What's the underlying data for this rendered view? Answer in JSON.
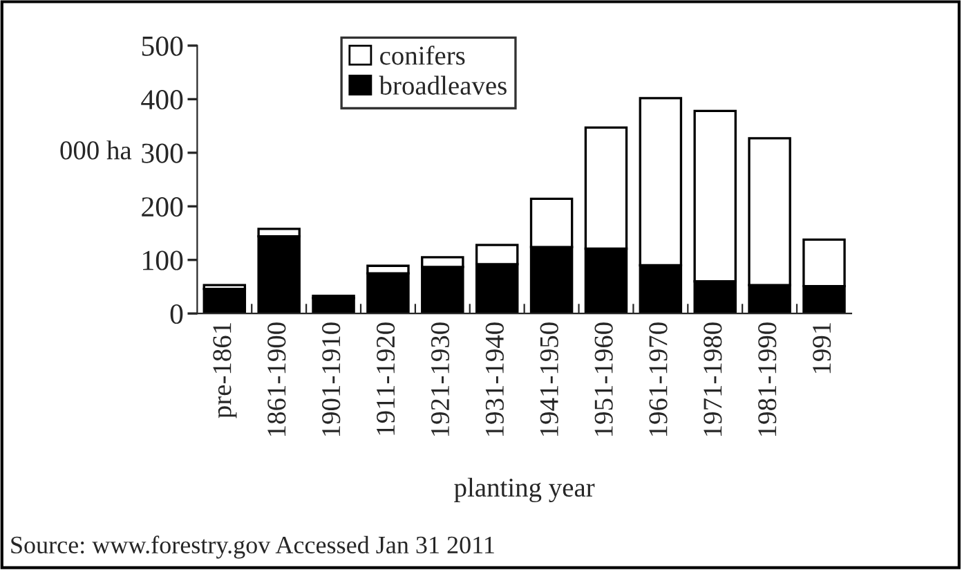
{
  "chart_data": {
    "type": "bar",
    "stacked": true,
    "xlabel": "planting year",
    "ylabel": "000 ha",
    "categories": [
      "pre-1861",
      "1861-1900",
      "1901-1910",
      "1911-1920",
      "1921-1930",
      "1931-1940",
      "1941-1950",
      "1951-1960",
      "1961-1970",
      "1971-1980",
      "1981-1990",
      "1991"
    ],
    "series": [
      {
        "name": "broadleaves",
        "color": "#000000",
        "values": [
          46,
          144,
          29,
          75,
          87,
          92,
          124,
          121,
          90,
          60,
          53,
          51
        ]
      },
      {
        "name": "conifers",
        "color": "#ffffff",
        "values": [
          7,
          14,
          4,
          14,
          18,
          36,
          90,
          226,
          312,
          318,
          274,
          87
        ]
      }
    ],
    "ylim": [
      0,
      500
    ],
    "yticks": [
      0,
      100,
      200,
      300,
      400,
      500
    ],
    "grid": false,
    "legend": "top left",
    "annotations": [
      "Source: www.forestry.gov Accessed Jan 31 2011"
    ]
  }
}
